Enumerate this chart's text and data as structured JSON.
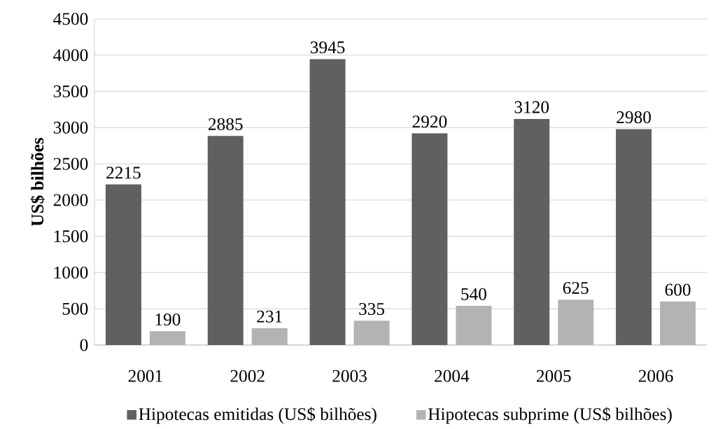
{
  "chart_data": {
    "type": "bar",
    "ylabel": "US$ bilhões",
    "categories": [
      "2001",
      "2002",
      "2003",
      "2004",
      "2005",
      "2006"
    ],
    "series": [
      {
        "name": "Hipotecas emitidas (US$ bilhões)",
        "color": "#606060",
        "values": [
          2215,
          2885,
          3945,
          2920,
          3120,
          2980
        ]
      },
      {
        "name": "Hipotecas subprime (US$ bilhões)",
        "color": "#b3b3b3",
        "values": [
          190,
          231,
          335,
          540,
          625,
          600
        ]
      }
    ],
    "ylim": [
      0,
      4500
    ],
    "yticks": [
      0,
      500,
      1000,
      1500,
      2000,
      2500,
      3000,
      3500,
      4000,
      4500
    ],
    "data_labels": true,
    "legend": "bottom",
    "grid": "y"
  }
}
